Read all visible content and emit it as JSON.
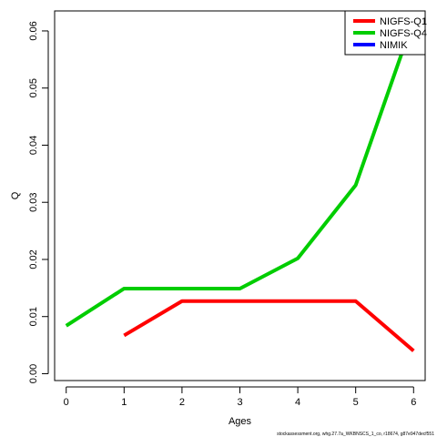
{
  "chart_data": {
    "type": "line",
    "title": "",
    "xlabel": "Ages",
    "ylabel": "Q",
    "xlim": [
      -0.2,
      6.2
    ],
    "ylim": [
      -0.0012,
      0.0635
    ],
    "x_ticks": [
      0,
      1,
      2,
      3,
      4,
      5,
      6
    ],
    "y_ticks": [
      0.0,
      0.01,
      0.02,
      0.03,
      0.04,
      0.05,
      0.06
    ],
    "y_tick_labels": [
      "0.00",
      "0.01",
      "0.02",
      "0.03",
      "0.04",
      "0.05",
      "0.06"
    ],
    "grid": false,
    "legend_position": "top-right",
    "series": [
      {
        "name": "NIGFS-Q1",
        "color": "#ff0000",
        "points": [
          [
            1,
            0.0067
          ],
          [
            2,
            0.0127
          ],
          [
            3,
            0.0127
          ],
          [
            4,
            0.0127
          ],
          [
            5,
            0.0127
          ],
          [
            6,
            0.004
          ]
        ]
      },
      {
        "name": "NIGFS-Q4",
        "color": "#00cd00",
        "points": [
          [
            0,
            0.0084
          ],
          [
            1,
            0.0149
          ],
          [
            2,
            0.0149
          ],
          [
            3,
            0.0149
          ],
          [
            4,
            0.0202
          ],
          [
            5,
            0.033
          ],
          [
            6,
            0.062
          ]
        ]
      },
      {
        "name": "NIMIK",
        "color": "#0000ff",
        "points": []
      }
    ],
    "footer": "stockassessment.org, whg.27.7a_WKBNSCS_1_co, r18674, g87e947decf551"
  }
}
